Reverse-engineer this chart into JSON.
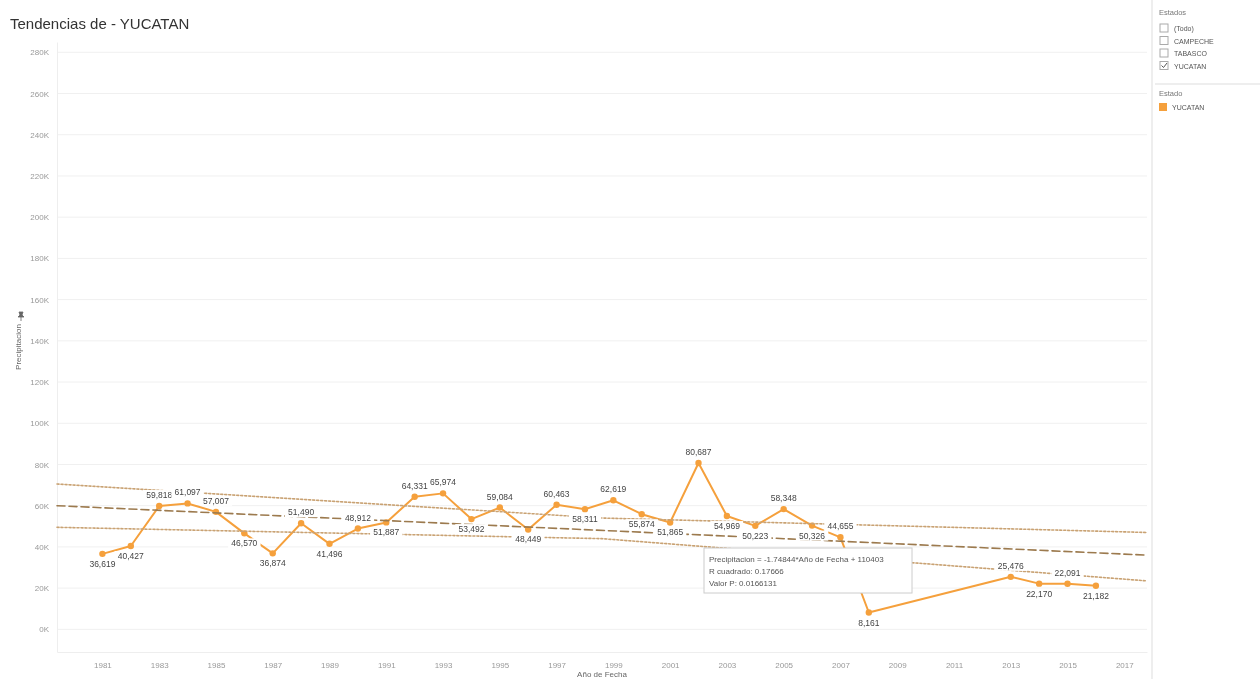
{
  "chart_data": {
    "type": "line",
    "title": "Tendencias de - YUCATAN",
    "xlabel": "Año de Fecha",
    "ylabel": "Precipitacion",
    "legend_title": "Estado",
    "legend": "right",
    "grid": "y",
    "marker": "circle",
    "xlim": [
      1979.4,
      2017.8
    ],
    "xticks": [
      1981,
      1983,
      1985,
      1987,
      1989,
      1991,
      1993,
      1995,
      1997,
      1999,
      2001,
      2003,
      2005,
      2007,
      2009,
      2011,
      2013,
      2015,
      2017
    ],
    "ylim": [
      -11000,
      285000
    ],
    "yticks": [
      {
        "value": 0,
        "label": "0K"
      },
      {
        "value": 20000,
        "label": "20K"
      },
      {
        "value": 40000,
        "label": "40K"
      },
      {
        "value": 60000,
        "label": "60K"
      },
      {
        "value": 80000,
        "label": "80K"
      },
      {
        "value": 100000,
        "label": "100K"
      },
      {
        "value": 120000,
        "label": "120K"
      },
      {
        "value": 140000,
        "label": "140K"
      },
      {
        "value": 160000,
        "label": "160K"
      },
      {
        "value": 180000,
        "label": "180K"
      },
      {
        "value": 200000,
        "label": "200K"
      },
      {
        "value": 220000,
        "label": "220K"
      },
      {
        "value": 240000,
        "label": "240K"
      },
      {
        "value": 260000,
        "label": "260K"
      },
      {
        "value": 280000,
        "label": "280K"
      }
    ],
    "series": [
      {
        "name": "YUCATAN",
        "color": "#f5a03c",
        "x": [
          1981,
          1982,
          1983,
          1984,
          1985,
          1986,
          1987,
          1988,
          1989,
          1990,
          1991,
          1992,
          1993,
          1994,
          1995,
          1996,
          1997,
          1998,
          1999,
          2000,
          2001,
          2002,
          2003,
          2004,
          2005,
          2006,
          2007,
          2008,
          2013,
          2014,
          2015,
          2016
        ],
        "values": [
          36619,
          40427,
          59818,
          61097,
          57007,
          46570,
          36874,
          51490,
          41496,
          48912,
          51887,
          64331,
          65974,
          53492,
          59084,
          48449,
          60463,
          58311,
          62619,
          55874,
          51865,
          80687,
          54969,
          50223,
          58348,
          50326,
          44655,
          8161,
          25476,
          22170,
          22091,
          21182
        ],
        "value_labels": [
          "36,619",
          "40,427",
          "59,818",
          "61,097",
          "57,007",
          "46,570",
          "36,874",
          "51,490",
          "41,496",
          "48,912",
          "51,887",
          "64,331",
          "65,974",
          "53,492",
          "59,084",
          "48,449",
          "60,463",
          "58,311",
          "62,619",
          "55,874",
          "51,865",
          "80,687",
          "54,969",
          "50,223",
          "58,348",
          "50,326",
          "44,655",
          "8,161",
          "25,476",
          "22,170",
          "22,091",
          "21,182"
        ]
      },
      {
        "type": "line",
        "color": "#9c7a4e",
        "line_style": "dashed",
        "marker": "none",
        "x": [
          1979.4,
          2017.8
        ],
        "values": [
          60000,
          36000
        ]
      },
      {
        "type": "line",
        "color": "#c9a273",
        "line_style": "dotted",
        "marker": "none",
        "x": [
          1979.4,
          1998.6,
          2017.8
        ],
        "values": [
          70500,
          54000,
          47000
        ]
      },
      {
        "type": "line",
        "color": "#c9a273",
        "line_style": "dotted",
        "marker": "none",
        "x": [
          1979.4,
          1998.6,
          2017.8
        ],
        "values": [
          49500,
          44000,
          23500
        ]
      }
    ],
    "annotations": [
      "Precipitacion = -1.74844*Año de Fecha + 110403",
      "R cuadrado: 0.17666",
      "Valor P: 0.0166131",
      "Estados",
      "(Todo)",
      "CAMPECHE",
      "TABASCO",
      "YUCATAN"
    ]
  }
}
